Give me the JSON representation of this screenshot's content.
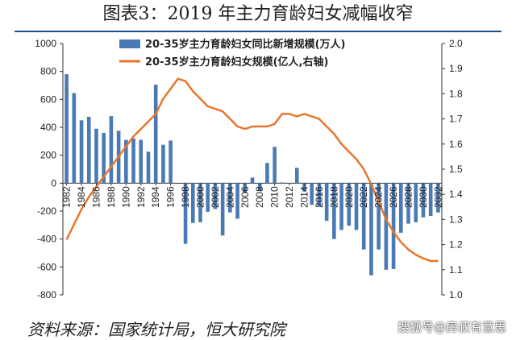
{
  "title": "图表3：2019 年主力育龄妇女减幅收窄",
  "source": "资料来源：国家统计局，恒大研究院",
  "watermark": "搜狐号@房叔有意思",
  "chart_data": {
    "type": "bar",
    "x": [
      1982,
      1983,
      1984,
      1985,
      1986,
      1987,
      1988,
      1989,
      1990,
      1991,
      1992,
      1993,
      1994,
      1995,
      1996,
      1997,
      1998,
      1999,
      2000,
      2001,
      2002,
      2003,
      2004,
      2005,
      2006,
      2007,
      2008,
      2009,
      2010,
      2011,
      2012,
      2013,
      2014,
      2015,
      2016,
      2017,
      2018,
      2019,
      2020,
      2021,
      2022,
      2023,
      2024,
      2025,
      2026,
      2027,
      2028,
      2029,
      2030,
      2031,
      2032
    ],
    "x_tick_labels": [
      "1982",
      "1984",
      "1986",
      "1988",
      "1990",
      "1992",
      "1994",
      "1996",
      "1998",
      "2000",
      "2002",
      "2004",
      "2006",
      "2008",
      "2010",
      "2012",
      "2014",
      "2016",
      "2018",
      "2020",
      "2022",
      "2024",
      "2026",
      "2028",
      "2030",
      "2032"
    ],
    "series": [
      {
        "name": "20-35岁主力育龄妇女同比新增规模(万人)",
        "type": "bar",
        "axis": "left",
        "color": "#4a7ab5",
        "values": [
          780,
          645,
          450,
          475,
          390,
          360,
          480,
          375,
          310,
          320,
          310,
          225,
          705,
          275,
          305,
          0,
          -435,
          -285,
          -280,
          -205,
          -185,
          -375,
          -210,
          -255,
          -70,
          40,
          -55,
          145,
          260,
          5,
          0,
          110,
          -60,
          -155,
          -170,
          -270,
          -400,
          -335,
          -305,
          -335,
          -475,
          -660,
          -475,
          -620,
          -615,
          -355,
          -290,
          -280,
          -245,
          -235,
          -210
        ]
      },
      {
        "name": "20-35岁主力育龄妇女规模(亿人,右轴)",
        "type": "line",
        "axis": "right",
        "color": "#e8762b",
        "values": [
          1.22,
          1.28,
          1.34,
          1.39,
          1.43,
          1.47,
          1.51,
          1.55,
          1.59,
          1.63,
          1.66,
          1.69,
          1.72,
          1.78,
          1.82,
          1.86,
          1.85,
          1.81,
          1.78,
          1.75,
          1.74,
          1.73,
          1.7,
          1.67,
          1.66,
          1.67,
          1.67,
          1.67,
          1.68,
          1.72,
          1.72,
          1.71,
          1.72,
          1.71,
          1.7,
          1.67,
          1.64,
          1.6,
          1.57,
          1.54,
          1.5,
          1.44,
          1.37,
          1.3,
          1.25,
          1.21,
          1.18,
          1.16,
          1.145,
          1.135,
          1.135
        ]
      }
    ],
    "ylim_left": [
      -800,
      1000
    ],
    "y_ticks_left": [
      "1000",
      "800",
      "600",
      "400",
      "200",
      "0",
      "-200",
      "-400",
      "-600",
      "-800"
    ],
    "ylim_right": [
      1.0,
      2.0
    ],
    "y_ticks_right": [
      "2.0",
      "1.9",
      "1.8",
      "1.7",
      "1.6",
      "1.5",
      "1.4",
      "1.3",
      "1.2",
      "1.1",
      "1.0"
    ],
    "legend_position": "top-center",
    "grid": false
  }
}
